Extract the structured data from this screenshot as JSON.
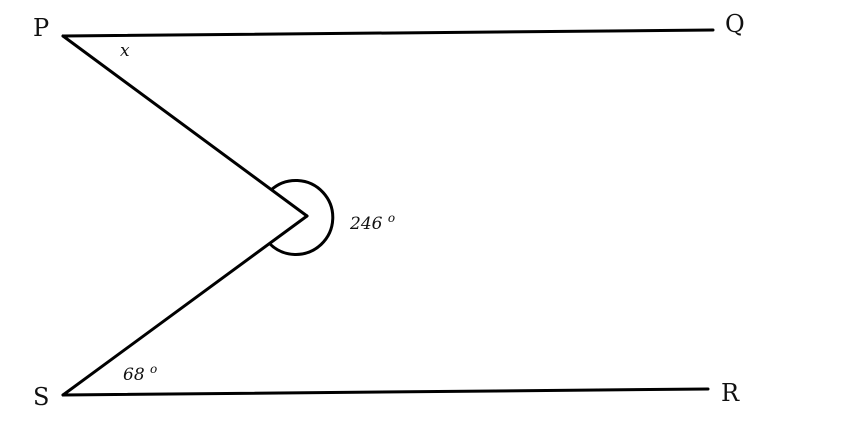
{
  "points": {
    "p": "P",
    "q": "Q",
    "r": "R",
    "s": "S"
  },
  "angles": {
    "x": "x",
    "reflex_value": "246",
    "reflex_unit": "o",
    "lower_value": "68",
    "lower_unit": "o"
  },
  "colors": {
    "line": "#000000",
    "text": "#111111"
  }
}
